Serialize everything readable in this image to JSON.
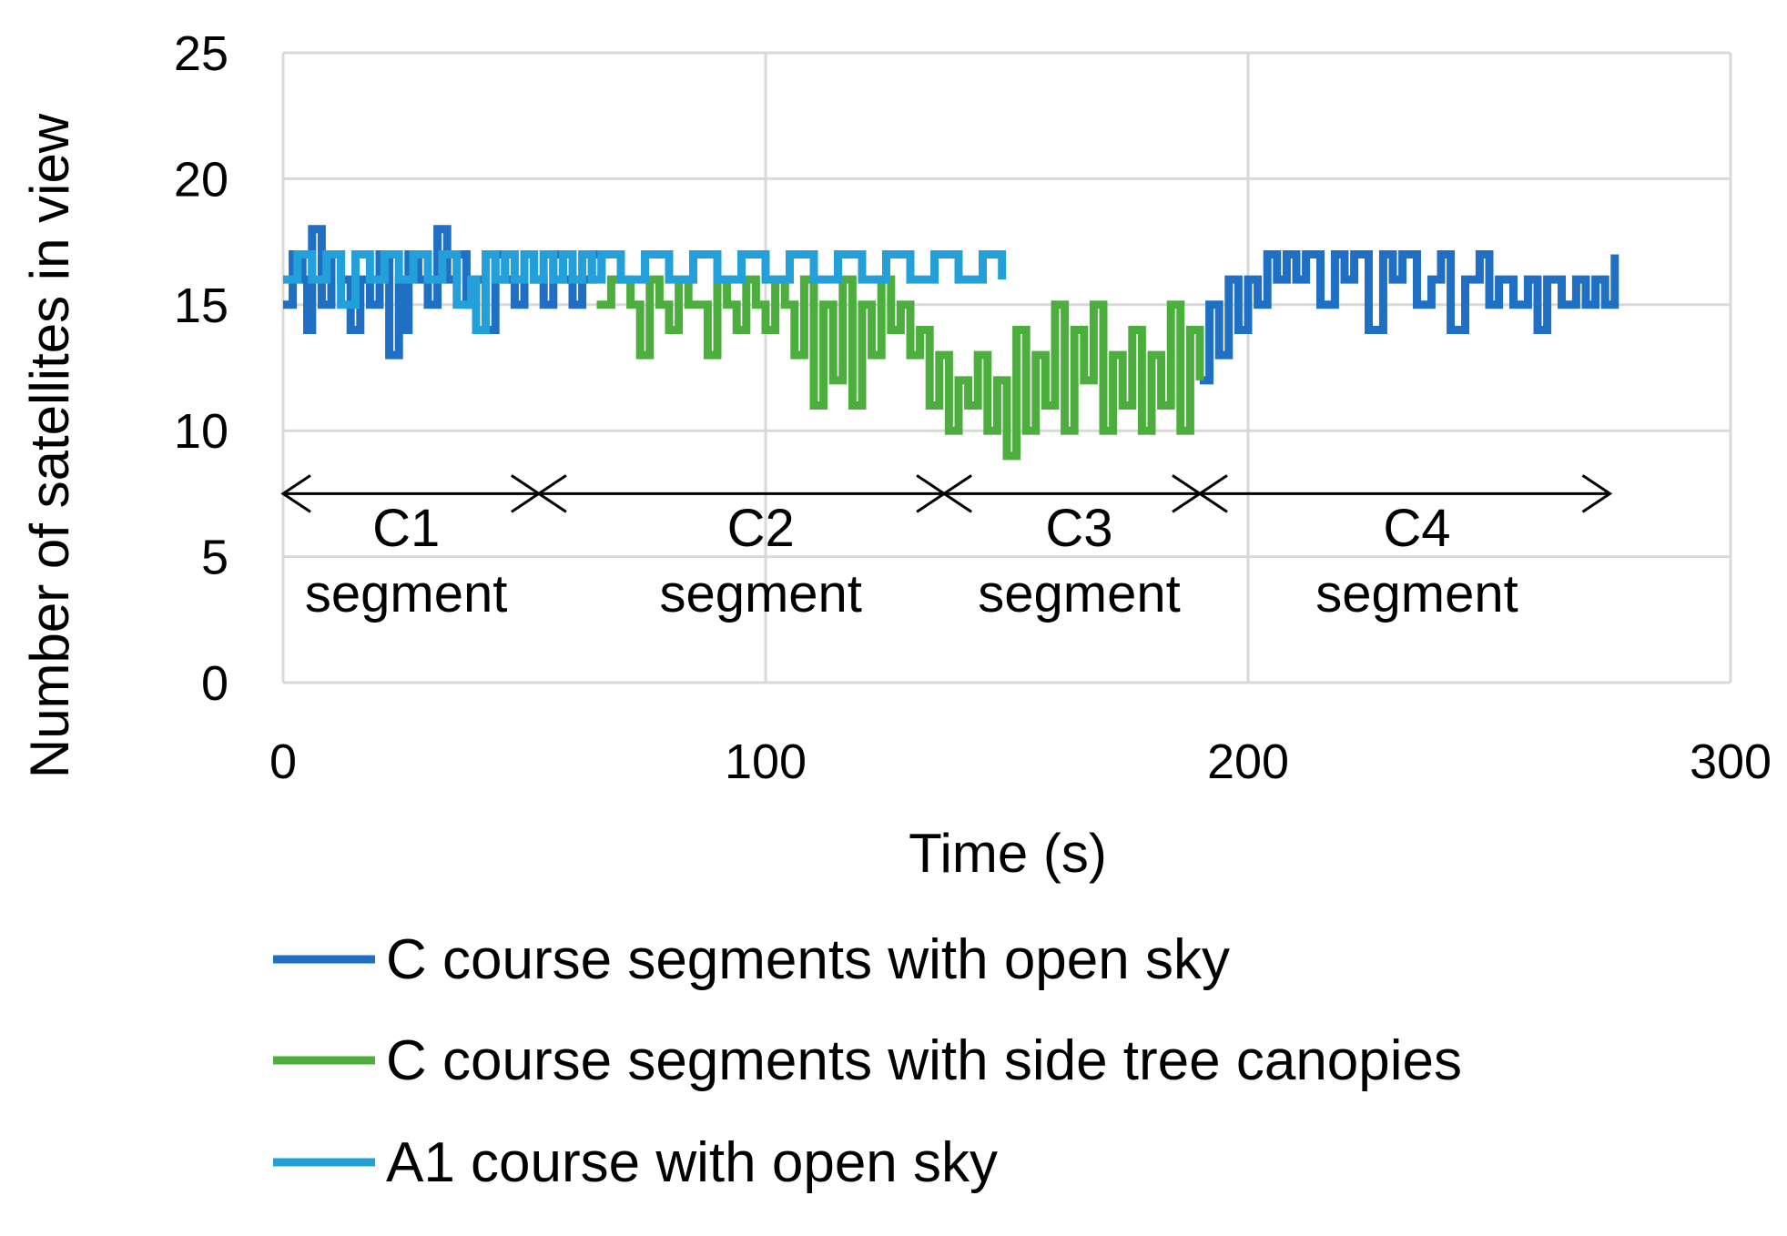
{
  "chart_data": {
    "type": "line",
    "xlabel": "Time (s)",
    "ylabel": "Number of satellites in view",
    "xlim": [
      0,
      300
    ],
    "ylim": [
      0,
      25
    ],
    "xticks": [
      "0",
      "100",
      "200",
      "300"
    ],
    "yticks": [
      "0",
      "5",
      "10",
      "15",
      "20",
      "25"
    ],
    "grid": true,
    "legend_position": "bottom",
    "series": [
      {
        "name": "C course segments with open sky",
        "color": "#1f6fc4",
        "segments": [
          {
            "x": [
              0,
              2,
              4,
              5,
              6,
              8,
              10,
              12,
              14,
              16,
              18,
              20,
              22,
              24,
              25,
              26,
              28,
              30,
              32,
              34,
              36,
              38,
              40,
              42,
              44,
              46,
              48,
              50,
              52,
              54,
              56,
              58,
              60,
              62,
              64,
              66
            ],
            "y": [
              15,
              17,
              16,
              14,
              18,
              15,
              17,
              16,
              14,
              16,
              15,
              17,
              13,
              16,
              14,
              17,
              16,
              15,
              18,
              16,
              17,
              15,
              16,
              14,
              17,
              16,
              15,
              17,
              16,
              15,
              17,
              16,
              15,
              16,
              17,
              16
            ]
          },
          {
            "x": [
              190,
              192,
              194,
              196,
              198,
              200,
              202,
              204,
              206,
              208,
              210,
              212,
              215,
              218,
              220,
              222,
              225,
              228,
              230,
              232,
              235,
              238,
              240,
              242,
              245,
              248,
              250,
              252,
              255,
              258,
              260,
              262,
              265,
              268,
              270,
              272,
              274,
              276
            ],
            "y": [
              12,
              15,
              13,
              16,
              14,
              16,
              15,
              17,
              16,
              17,
              16,
              17,
              15,
              17,
              16,
              17,
              14,
              17,
              16,
              17,
              15,
              16,
              17,
              14,
              16,
              17,
              15,
              16,
              15,
              16,
              14,
              16,
              15,
              16,
              15,
              16,
              15,
              17
            ]
          }
        ]
      },
      {
        "name": "C course segments with side tree canopies",
        "color": "#4cae3d",
        "segments": [
          {
            "x": [
              65,
              68,
              72,
              74,
              76,
              78,
              80,
              82,
              84,
              86,
              88,
              90,
              92,
              94,
              96,
              98,
              100,
              102,
              104,
              106,
              108,
              110,
              112,
              114,
              116,
              118,
              120,
              122,
              124,
              126,
              128,
              130,
              132,
              134,
              136,
              138,
              140,
              142,
              144,
              146,
              148,
              150,
              152,
              154,
              156,
              158,
              160,
              162,
              164,
              166,
              168,
              170,
              172,
              174,
              176,
              178,
              180,
              182,
              184,
              186,
              188,
              190
            ],
            "y": [
              15,
              16,
              15,
              13,
              16,
              15,
              14,
              16,
              15,
              15,
              13,
              16,
              15,
              14,
              16,
              15,
              14,
              16,
              15,
              13,
              16,
              11,
              15,
              12,
              16,
              11,
              15,
              13,
              16,
              14,
              15,
              13,
              14,
              11,
              13,
              10,
              12,
              11,
              13,
              10,
              12,
              9,
              14,
              10,
              13,
              11,
              15,
              10,
              14,
              12,
              15,
              10,
              13,
              11,
              14,
              10,
              13,
              11,
              15,
              10,
              14,
              12
            ]
          }
        ]
      },
      {
        "name": "A1 course with open sky",
        "color": "#23a0da",
        "segments": [
          {
            "x": [
              0,
              3,
              6,
              9,
              12,
              15,
              18,
              21,
              24,
              27,
              30,
              33,
              36,
              39,
              40,
              42,
              44,
              46,
              48,
              50,
              52,
              54,
              56,
              58,
              60,
              62,
              64,
              66,
              70,
              75,
              80,
              85,
              90,
              95,
              100,
              105,
              110,
              115,
              120,
              125,
              130,
              135,
              140,
              145,
              149
            ],
            "y": [
              16,
              17,
              16,
              17,
              15,
              17,
              16,
              17,
              16,
              17,
              16,
              17,
              15,
              16,
              14,
              17,
              16,
              17,
              16,
              17,
              16,
              17,
              16,
              17,
              16,
              17,
              16,
              17,
              16,
              17,
              16,
              17,
              16,
              17,
              16,
              17,
              16,
              17,
              16,
              17,
              16,
              17,
              16,
              17,
              16
            ]
          }
        ]
      }
    ],
    "annotations": [
      {
        "label": "C1",
        "sub": "segment"
      },
      {
        "label": "C2",
        "sub": "segment"
      },
      {
        "label": "C3",
        "sub": "segment"
      },
      {
        "label": "C4",
        "sub": "segment"
      }
    ]
  }
}
